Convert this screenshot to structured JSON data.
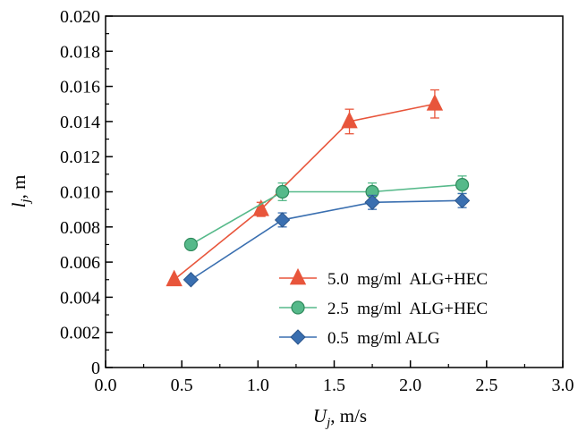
{
  "chart_data": {
    "type": "line",
    "xlabel_main": "U",
    "xlabel_sub": "j",
    "xlabel_unit": ", m/s",
    "ylabel_main": "l",
    "ylabel_sub": "j",
    "ylabel_unit": ", m",
    "xlim": [
      0.0,
      3.0
    ],
    "ylim": [
      0,
      0.02
    ],
    "x_ticks": [
      "0.0",
      "0.5",
      "1.0",
      "1.5",
      "2.0",
      "2.5",
      "3.0"
    ],
    "y_ticks": [
      "0",
      "0.002",
      "0.004",
      "0.006",
      "0.008",
      "0.010",
      "0.012",
      "0.014",
      "0.016",
      "0.018",
      "0.020"
    ],
    "grid": false,
    "legend_position": "bottom-right",
    "series": [
      {
        "name": "5.0  mg/ml  ALG+HEC",
        "marker": "triangle",
        "color": "#e8553b",
        "x": [
          0.45,
          1.02,
          1.6,
          2.16
        ],
        "y": [
          0.005,
          0.009,
          0.014,
          0.015
        ],
        "err": [
          0,
          0.0004,
          0.0007,
          0.0008
        ]
      },
      {
        "name": "2.5  mg/ml  ALG+HEC",
        "marker": "circle",
        "color": "#56b98a",
        "x": [
          0.56,
          1.16,
          1.75,
          2.34
        ],
        "y": [
          0.007,
          0.01,
          0.01,
          0.0104
        ],
        "err": [
          0,
          0.0005,
          0.0005,
          0.0005
        ]
      },
      {
        "name": "0.5  mg/ml ALG",
        "marker": "diamond",
        "color": "#3a6fb0",
        "x": [
          0.56,
          1.16,
          1.75,
          2.34
        ],
        "y": [
          0.005,
          0.0084,
          0.0094,
          0.0095
        ],
        "err": [
          0,
          0.0004,
          0.0004,
          0.0004
        ]
      }
    ]
  }
}
